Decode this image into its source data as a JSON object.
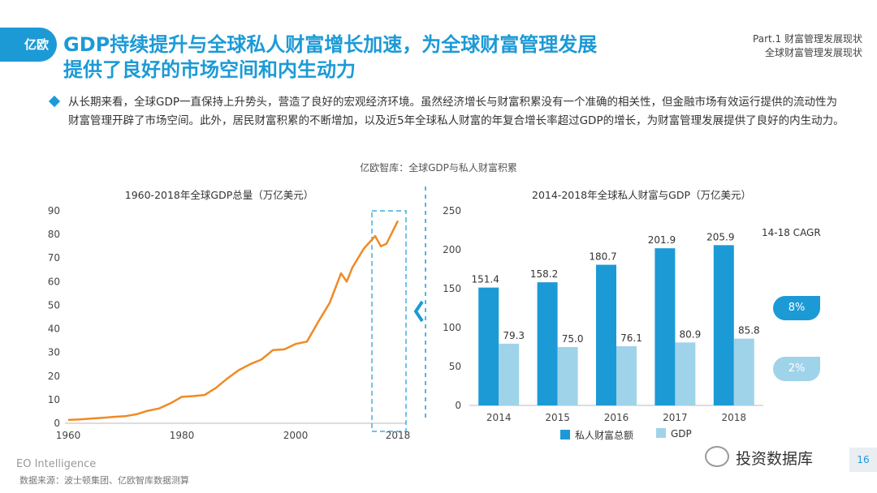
{
  "header": {
    "logo_text": "亿欧",
    "title_line1": "GDP持续提升与全球私人财富增长加速，为全球财富管理发展",
    "title_line2": "提供了良好的市场空间和内生动力",
    "part_line1": "Part.1 财富管理发展现状",
    "part_line2": "全球财富管理发展现状"
  },
  "body": {
    "paragraph": "从长期来看，全球GDP一直保持上升势头，营造了良好的宏观经济环境。虽然经济增长与财富积累没有一个准确的相关性，但金融市场有效运行提供的流动性为财富管理开辟了市场空间。此外，居民财富积累的不断增加，以及近5年全球私人财富的年复合增长率超过GDP的增长，为财富管理发展提供了良好的内生动力。",
    "chart_source": "亿欧智库：全球GDP与私人财富积累"
  },
  "colors": {
    "accent": "#1c9ad6",
    "line": "#f08a24",
    "light_bar": "#9fd3ea"
  },
  "chart_data": [
    {
      "type": "line",
      "title": "1960-2018年全球GDP总量（万亿美元）",
      "x": [
        1960,
        1962,
        1964,
        1966,
        1968,
        1970,
        1972,
        1974,
        1976,
        1978,
        1980,
        1982,
        1984,
        1986,
        1988,
        1990,
        1992,
        1994,
        1996,
        1998,
        2000,
        2002,
        2004,
        2006,
        2008,
        2009,
        2010,
        2012,
        2014,
        2015,
        2016,
        2018
      ],
      "y": [
        1.4,
        1.6,
        2.0,
        2.3,
        2.7,
        3.0,
        3.8,
        5.3,
        6.3,
        8.5,
        11.2,
        11.5,
        12.0,
        15.0,
        19.0,
        22.5,
        25.0,
        27.0,
        31.0,
        31.3,
        33.6,
        34.6,
        43.0,
        51.0,
        63.5,
        60.0,
        66.0,
        74.0,
        79.3,
        75.0,
        76.1,
        85.8
      ],
      "x_ticks": [
        "1960",
        "1980",
        "2000",
        "2018"
      ],
      "y_ticks": [
        "0",
        "10",
        "20",
        "30",
        "40",
        "50",
        "60",
        "70",
        "80",
        "90"
      ],
      "xlim": [
        1960,
        2018
      ],
      "ylim": [
        0,
        90
      ]
    },
    {
      "type": "bar",
      "title": "2014-2018年全球私人财富与GDP（万亿美元）",
      "categories": [
        "2014",
        "2015",
        "2016",
        "2017",
        "2018"
      ],
      "series": [
        {
          "name": "私人财富总额",
          "values": [
            151.4,
            158.2,
            180.7,
            201.9,
            205.9
          ],
          "labels": [
            "151.4",
            "158.2",
            "180.7",
            "201.9",
            "205.9"
          ]
        },
        {
          "name": "GDP",
          "values": [
            79.3,
            75.0,
            76.1,
            80.9,
            85.8
          ],
          "labels": [
            "79.3",
            "75.0",
            "76.1",
            "80.9",
            "85.8"
          ]
        }
      ],
      "y_ticks": [
        "0",
        "50",
        "100",
        "150",
        "200",
        "250"
      ],
      "ylim": [
        0,
        250
      ],
      "cagr_title": "14-18 CAGR",
      "cagr": [
        "8%",
        "2%"
      ]
    }
  ],
  "footer": {
    "brand": "EO Intelligence",
    "source": "数据来源：波士顿集团、亿欧智库数据测算",
    "watermark": "投资数据库",
    "page": "16"
  }
}
